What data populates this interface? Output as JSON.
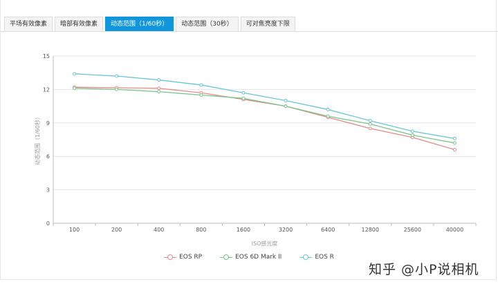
{
  "tabs": [
    {
      "label": "平场有效像素",
      "active": false
    },
    {
      "label": "暗部有效像素",
      "active": false
    },
    {
      "label": "动态范围（1/60秒）",
      "active": true
    },
    {
      "label": "动态范围（30秒）",
      "active": false
    },
    {
      "label": "可对焦亮度下限",
      "active": false
    }
  ],
  "watermark": "知乎 @小P说相机",
  "chart_data": {
    "type": "line",
    "xlabel": "ISO感光度",
    "ylabel": "动态范围（1/60秒）",
    "categories": [
      "100",
      "200",
      "400",
      "800",
      "1600",
      "3200",
      "6400",
      "12800",
      "25600",
      "40000"
    ],
    "ylim": [
      0,
      15
    ],
    "yticks": [
      0,
      3,
      6,
      9,
      12,
      15
    ],
    "grid": true,
    "legend_position": "bottom",
    "series": [
      {
        "name": "EOS RP",
        "color": "#e08a8a",
        "values": [
          12.2,
          12.15,
          12.1,
          11.7,
          11.1,
          10.5,
          9.5,
          8.5,
          7.7,
          6.6
        ]
      },
      {
        "name": "EOS 6D Mark II",
        "color": "#7ac48a",
        "values": [
          12.1,
          12.0,
          11.8,
          11.5,
          11.2,
          10.5,
          9.6,
          8.9,
          7.9,
          7.2
        ]
      },
      {
        "name": "EOS R",
        "color": "#6cc3d6",
        "values": [
          13.4,
          13.2,
          12.85,
          12.4,
          11.7,
          11.0,
          10.2,
          9.2,
          8.25,
          7.6
        ]
      }
    ]
  }
}
